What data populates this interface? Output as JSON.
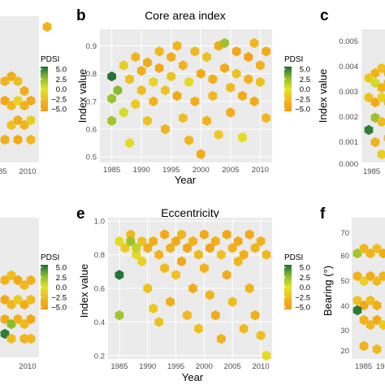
{
  "panels": {
    "a": {
      "x_ticks": [
        "85",
        "2010"
      ]
    },
    "b": {
      "letter": "b",
      "title": "Core area index"
    },
    "c": {
      "letter": "c",
      "y_ticks": [
        "0.005",
        "0.004",
        "0.003",
        "0.002",
        "0.001",
        "0.000"
      ],
      "x_tick": "1985"
    },
    "d": {
      "x_tick": "2010"
    },
    "e": {
      "letter": "e",
      "title": "Eccentricity"
    },
    "f": {
      "letter": "f",
      "y_ticks": [
        "70",
        "60",
        "50",
        "40",
        "30",
        "20"
      ],
      "x_ticks": [
        "1985",
        "19"
      ]
    }
  },
  "legend": {
    "title": "PDSI",
    "ticks": [
      "5.0",
      "2.5",
      "0.0",
      "−2.5",
      "−5.0"
    ],
    "colors": [
      "#1a6e3a",
      "#8bbb2e",
      "#e3e326",
      "#f0b81e",
      "#f39b12"
    ]
  },
  "chart_data": [
    {
      "type": "heatmap",
      "subtype": "hexbin",
      "title": "Core area index",
      "xlabel": "Year",
      "ylabel": "Index value",
      "xlim": [
        1983,
        2012
      ],
      "ylim": [
        0.48,
        0.96
      ],
      "x_ticks": [
        1985,
        1990,
        1995,
        2000,
        2005,
        2010
      ],
      "y_ticks": [
        0.5,
        0.6,
        0.7,
        0.8,
        0.9
      ],
      "color_scale": {
        "label": "PDSI",
        "min": -5.0,
        "max": 5.0
      },
      "cells": [
        {
          "x": 1985,
          "y": 0.79,
          "pdsi": 4.8
        },
        {
          "x": 1985,
          "y": 0.71,
          "pdsi": 2.0
        },
        {
          "x": 1985,
          "y": 0.63,
          "pdsi": 1.8
        },
        {
          "x": 1986,
          "y": 0.74,
          "pdsi": 2.5
        },
        {
          "x": 1987,
          "y": 0.66,
          "pdsi": 0.4
        },
        {
          "x": 1987,
          "y": 0.83,
          "pdsi": -1.2
        },
        {
          "x": 1988,
          "y": 0.55,
          "pdsi": -0.5
        },
        {
          "x": 1988,
          "y": 0.78,
          "pdsi": -2.0
        },
        {
          "x": 1989,
          "y": 0.69,
          "pdsi": -1.5
        },
        {
          "x": 1989,
          "y": 0.86,
          "pdsi": -2.8
        },
        {
          "x": 1990,
          "y": 0.81,
          "pdsi": -3.2
        },
        {
          "x": 1990,
          "y": 0.74,
          "pdsi": -2.2
        },
        {
          "x": 1991,
          "y": 0.63,
          "pdsi": -2.0
        },
        {
          "x": 1991,
          "y": 0.84,
          "pdsi": -3.5
        },
        {
          "x": 1992,
          "y": 0.77,
          "pdsi": -0.8
        },
        {
          "x": 1992,
          "y": 0.7,
          "pdsi": -3.0
        },
        {
          "x": 1993,
          "y": 0.88,
          "pdsi": -2.5
        },
        {
          "x": 1993,
          "y": 0.82,
          "pdsi": -3.8
        },
        {
          "x": 1994,
          "y": 0.74,
          "pdsi": -2.0
        },
        {
          "x": 1994,
          "y": 0.6,
          "pdsi": -3.0
        },
        {
          "x": 1995,
          "y": 0.86,
          "pdsi": -3.5
        },
        {
          "x": 1995,
          "y": 0.79,
          "pdsi": -1.8
        },
        {
          "x": 1996,
          "y": 0.9,
          "pdsi": -2.8
        },
        {
          "x": 1996,
          "y": 0.72,
          "pdsi": -3.6
        },
        {
          "x": 1997,
          "y": 0.83,
          "pdsi": -3.0
        },
        {
          "x": 1997,
          "y": 0.64,
          "pdsi": -2.2
        },
        {
          "x": 1998,
          "y": 0.77,
          "pdsi": -0.5
        },
        {
          "x": 1998,
          "y": 0.56,
          "pdsi": -2.8
        },
        {
          "x": 1999,
          "y": 0.88,
          "pdsi": -2.5
        },
        {
          "x": 1999,
          "y": 0.7,
          "pdsi": -3.5
        },
        {
          "x": 2000,
          "y": 0.8,
          "pdsi": -3.8
        },
        {
          "x": 2000,
          "y": 0.51,
          "pdsi": -3.5
        },
        {
          "x": 2001,
          "y": 0.86,
          "pdsi": -2.0
        },
        {
          "x": 2001,
          "y": 0.63,
          "pdsi": -3.0
        },
        {
          "x": 2002,
          "y": 0.78,
          "pdsi": -3.2
        },
        {
          "x": 2002,
          "y": 0.72,
          "pdsi": -2.6
        },
        {
          "x": 2003,
          "y": 0.9,
          "pdsi": -3.6
        },
        {
          "x": 2003,
          "y": 0.58,
          "pdsi": -1.5
        },
        {
          "x": 2004,
          "y": 0.91,
          "pdsi": 2.0
        },
        {
          "x": 2004,
          "y": 0.82,
          "pdsi": -3.8
        },
        {
          "x": 2005,
          "y": 0.75,
          "pdsi": -2.4
        },
        {
          "x": 2005,
          "y": 0.66,
          "pdsi": -3.4
        },
        {
          "x": 2006,
          "y": 0.88,
          "pdsi": -4.0
        },
        {
          "x": 2006,
          "y": 0.8,
          "pdsi": -2.0
        },
        {
          "x": 2007,
          "y": 0.72,
          "pdsi": -3.6
        },
        {
          "x": 2007,
          "y": 0.57,
          "pdsi": -0.6
        },
        {
          "x": 2008,
          "y": 0.86,
          "pdsi": -4.2
        },
        {
          "x": 2008,
          "y": 0.78,
          "pdsi": -3.0
        },
        {
          "x": 2009,
          "y": 0.91,
          "pdsi": -2.6
        },
        {
          "x": 2009,
          "y": 0.7,
          "pdsi": -3.8
        },
        {
          "x": 2010,
          "y": 0.83,
          "pdsi": -3.2
        },
        {
          "x": 2010,
          "y": 0.77,
          "pdsi": -2.0
        },
        {
          "x": 2011,
          "y": 0.88,
          "pdsi": -3.5
        },
        {
          "x": 2011,
          "y": 0.64,
          "pdsi": -2.5
        }
      ]
    },
    {
      "type": "heatmap",
      "subtype": "hexbin",
      "title": "Eccentricity",
      "xlabel": "Year",
      "ylabel": "Index value",
      "xlim": [
        1983,
        2012
      ],
      "ylim": [
        0.18,
        1.02
      ],
      "x_ticks": [
        1985,
        1990,
        1995,
        2000,
        2005,
        2010
      ],
      "y_ticks": [
        0.2,
        0.4,
        0.6,
        0.8,
        1.0
      ],
      "color_scale": {
        "label": "PDSI",
        "min": -5.0,
        "max": 5.0
      },
      "cells": [
        {
          "x": 1985,
          "y": 0.88,
          "pdsi": -0.5
        },
        {
          "x": 1985,
          "y": 0.68,
          "pdsi": 4.8
        },
        {
          "x": 1985,
          "y": 0.44,
          "pdsi": 1.8
        },
        {
          "x": 1986,
          "y": 0.84,
          "pdsi": -1.5
        },
        {
          "x": 1987,
          "y": 0.92,
          "pdsi": -2.6
        },
        {
          "x": 1987,
          "y": 0.88,
          "pdsi": 2.0
        },
        {
          "x": 1988,
          "y": 0.8,
          "pdsi": -0.6
        },
        {
          "x": 1988,
          "y": 0.84,
          "pdsi": 1.0
        },
        {
          "x": 1989,
          "y": 0.88,
          "pdsi": -2.0
        },
        {
          "x": 1989,
          "y": 0.76,
          "pdsi": -1.0
        },
        {
          "x": 1990,
          "y": 0.84,
          "pdsi": -3.5
        },
        {
          "x": 1990,
          "y": 0.6,
          "pdsi": -2.0
        },
        {
          "x": 1991,
          "y": 0.88,
          "pdsi": -3.2
        },
        {
          "x": 1991,
          "y": 0.48,
          "pdsi": -1.5
        },
        {
          "x": 1992,
          "y": 0.8,
          "pdsi": -2.8
        },
        {
          "x": 1992,
          "y": 0.4,
          "pdsi": -2.0
        },
        {
          "x": 1993,
          "y": 0.92,
          "pdsi": -3.8
        },
        {
          "x": 1993,
          "y": 0.72,
          "pdsi": -2.4
        },
        {
          "x": 1994,
          "y": 0.84,
          "pdsi": -3.0
        },
        {
          "x": 1994,
          "y": 0.52,
          "pdsi": -3.2
        },
        {
          "x": 1995,
          "y": 0.88,
          "pdsi": -3.6
        },
        {
          "x": 1995,
          "y": 0.68,
          "pdsi": -2.0
        },
        {
          "x": 1996,
          "y": 0.92,
          "pdsi": -2.8
        },
        {
          "x": 1996,
          "y": 0.76,
          "pdsi": -3.8
        },
        {
          "x": 1997,
          "y": 0.84,
          "pdsi": -4.0
        },
        {
          "x": 1997,
          "y": 0.44,
          "pdsi": -2.5
        },
        {
          "x": 1998,
          "y": 0.88,
          "pdsi": -3.0
        },
        {
          "x": 1998,
          "y": 0.6,
          "pdsi": -3.4
        },
        {
          "x": 1999,
          "y": 0.8,
          "pdsi": -2.6
        },
        {
          "x": 1999,
          "y": 0.36,
          "pdsi": -2.0
        },
        {
          "x": 2000,
          "y": 0.92,
          "pdsi": -3.6
        },
        {
          "x": 2000,
          "y": 0.72,
          "pdsi": -3.0
        },
        {
          "x": 2001,
          "y": 0.84,
          "pdsi": -4.2
        },
        {
          "x": 2001,
          "y": 0.56,
          "pdsi": -2.8
        },
        {
          "x": 2002,
          "y": 0.88,
          "pdsi": -3.2
        },
        {
          "x": 2002,
          "y": 0.44,
          "pdsi": -3.5
        },
        {
          "x": 2003,
          "y": 0.8,
          "pdsi": -2.0
        },
        {
          "x": 2003,
          "y": 0.3,
          "pdsi": -3.0
        },
        {
          "x": 2004,
          "y": 0.92,
          "pdsi": -4.0
        },
        {
          "x": 2004,
          "y": 0.68,
          "pdsi": -3.5
        },
        {
          "x": 2005,
          "y": 0.84,
          "pdsi": -3.0
        },
        {
          "x": 2005,
          "y": 0.52,
          "pdsi": -2.2
        },
        {
          "x": 2006,
          "y": 0.88,
          "pdsi": -3.8
        },
        {
          "x": 2006,
          "y": 0.76,
          "pdsi": -2.6
        },
        {
          "x": 2007,
          "y": 0.8,
          "pdsi": -3.2
        },
        {
          "x": 2007,
          "y": 0.36,
          "pdsi": -2.4
        },
        {
          "x": 2008,
          "y": 0.92,
          "pdsi": -3.6
        },
        {
          "x": 2008,
          "y": 0.6,
          "pdsi": -3.0
        },
        {
          "x": 2009,
          "y": 0.84,
          "pdsi": -2.8
        },
        {
          "x": 2009,
          "y": 0.44,
          "pdsi": -3.4
        },
        {
          "x": 2010,
          "y": 0.88,
          "pdsi": -3.0
        },
        {
          "x": 2010,
          "y": 0.32,
          "pdsi": -2.0
        },
        {
          "x": 2011,
          "y": 0.8,
          "pdsi": -2.5
        },
        {
          "x": 2011,
          "y": 0.2,
          "pdsi": -0.5
        }
      ]
    }
  ]
}
